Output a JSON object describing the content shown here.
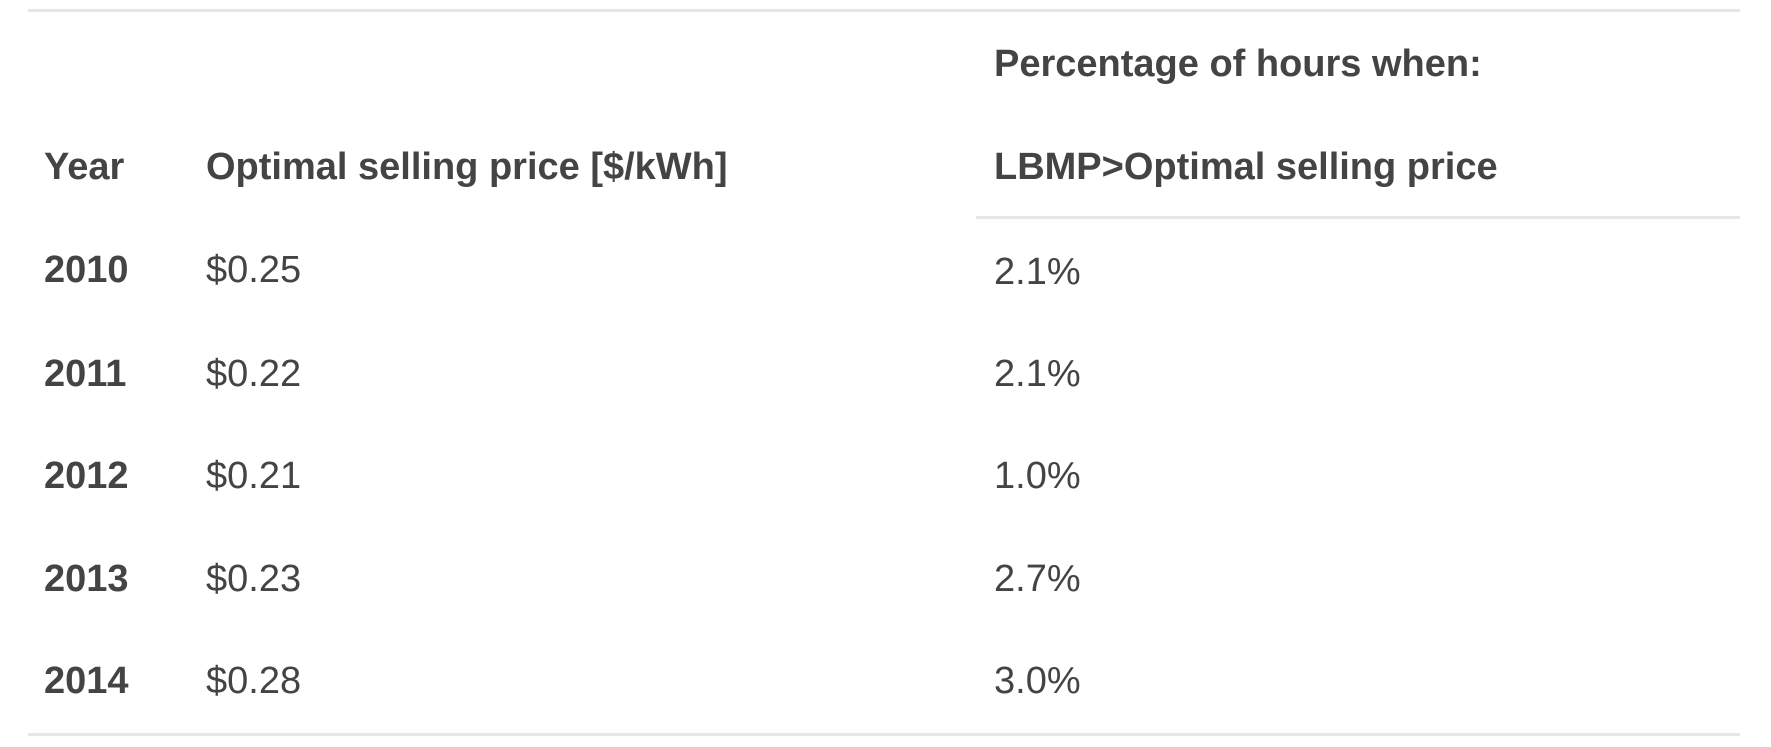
{
  "table": {
    "group_header": "Percentage of hours when:",
    "headers": {
      "year": "Year",
      "price": "Optimal selling price [$/kWh]",
      "pct": "LBMP>Optimal selling price"
    },
    "rows": [
      {
        "year": "2010",
        "price": "$0.25",
        "pct": "2.1%"
      },
      {
        "year": "2011",
        "price": "$0.22",
        "pct": "2.1%"
      },
      {
        "year": "2012",
        "price": "$0.21",
        "pct": "1.0%"
      },
      {
        "year": "2013",
        "price": "$0.23",
        "pct": "2.7%"
      },
      {
        "year": "2014",
        "price": "$0.28",
        "pct": "3.0%"
      }
    ]
  }
}
